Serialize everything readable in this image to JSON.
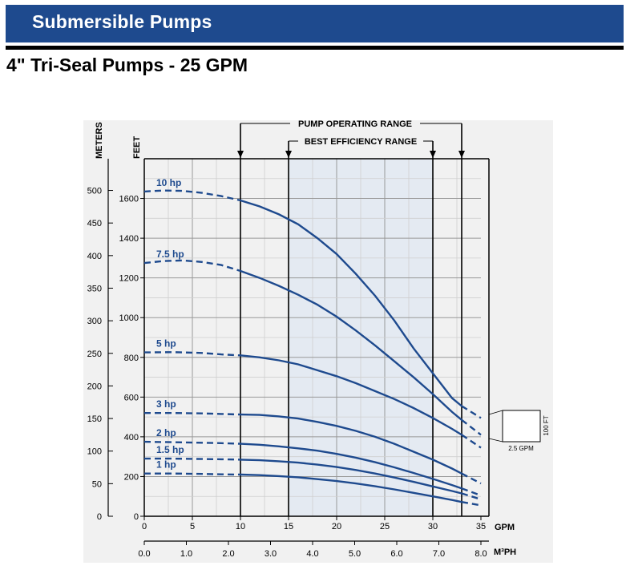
{
  "header": {
    "banner_title": "Submersible Pumps",
    "subtitle": "4\" Tri-Seal Pumps - 25 GPM"
  },
  "colors": {
    "banner": "#1e4a8e",
    "curve": "#1e4a8e",
    "bestEfficiency": "#e4eaf2"
  },
  "chart_data": {
    "type": "line",
    "title": "4\" Tri-Seal Pumps - 25 GPM",
    "xlabel": "GPM",
    "x2label": "M³PH",
    "ylabel_left": "METERS",
    "ylabel_right": "FEET",
    "xlim": [
      0,
      35
    ],
    "ylim_feet": [
      0,
      1800
    ],
    "x_ticks": [
      0,
      5,
      10,
      15,
      20,
      25,
      30,
      35
    ],
    "x_tick_labels": [
      "0",
      "5",
      "10",
      "15",
      "20",
      "25",
      "30",
      "35"
    ],
    "x2_ticks": [
      0.0,
      1.0,
      2.0,
      3.0,
      4.0,
      5.0,
      6.0,
      7.0,
      8.0
    ],
    "x2_tick_labels": [
      "0.0",
      "1.0",
      "2.0",
      "3.0",
      "4.0",
      "5.0",
      "6.0",
      "7.0",
      "8.0"
    ],
    "feet_ticks": [
      0,
      200,
      400,
      600,
      800,
      1000,
      1200,
      1400,
      1600
    ],
    "feet_tick_labels": [
      "0",
      "200",
      "400",
      "600",
      "800",
      "1000",
      "1200",
      "1400",
      "1600"
    ],
    "meter_ticks": [
      0,
      50,
      100,
      150,
      200,
      250,
      300,
      350,
      400,
      450,
      500
    ],
    "meter_tick_labels": [
      "0",
      "50",
      "100",
      "150",
      "200",
      "250",
      "300",
      "350",
      "400",
      "450",
      "500"
    ],
    "pump_operating_range": {
      "label": "PUMP OPERATING RANGE",
      "x": [
        10,
        33
      ]
    },
    "best_efficiency_range": {
      "label": "BEST EFFICIENCY RANGE",
      "x": [
        15,
        30
      ]
    },
    "scale_box": {
      "x_label": "2.5 GPM",
      "y_label": "100 FT"
    },
    "series": [
      {
        "name": "10 hp",
        "dashed": [
          [
            0,
            1635
          ],
          [
            2,
            1640
          ],
          [
            4,
            1638
          ],
          [
            6,
            1628
          ],
          [
            8,
            1612
          ],
          [
            10,
            1590
          ]
        ],
        "solid": [
          [
            10,
            1590
          ],
          [
            12,
            1560
          ],
          [
            14,
            1520
          ],
          [
            16,
            1470
          ],
          [
            18,
            1400
          ],
          [
            20,
            1320
          ],
          [
            22,
            1220
          ],
          [
            24,
            1110
          ],
          [
            26,
            985
          ],
          [
            28,
            845
          ],
          [
            30,
            720
          ],
          [
            32,
            595
          ],
          [
            33,
            555
          ]
        ],
        "tail": [
          [
            33,
            555
          ],
          [
            35,
            495
          ]
        ]
      },
      {
        "name": "7.5 hp",
        "dashed": [
          [
            0,
            1275
          ],
          [
            2,
            1285
          ],
          [
            4,
            1288
          ],
          [
            6,
            1280
          ],
          [
            8,
            1265
          ],
          [
            10,
            1235
          ]
        ],
        "solid": [
          [
            10,
            1235
          ],
          [
            12,
            1200
          ],
          [
            14,
            1160
          ],
          [
            16,
            1115
          ],
          [
            18,
            1065
          ],
          [
            20,
            1005
          ],
          [
            22,
            935
          ],
          [
            24,
            860
          ],
          [
            26,
            780
          ],
          [
            28,
            700
          ],
          [
            30,
            615
          ],
          [
            32,
            525
          ],
          [
            33,
            485
          ]
        ],
        "tail": [
          [
            33,
            485
          ],
          [
            35,
            410
          ]
        ]
      },
      {
        "name": "5 hp",
        "dashed": [
          [
            0,
            825
          ],
          [
            3,
            826
          ],
          [
            6,
            822
          ],
          [
            8,
            815
          ],
          [
            10,
            810
          ]
        ],
        "solid": [
          [
            10,
            810
          ],
          [
            12,
            800
          ],
          [
            14,
            785
          ],
          [
            16,
            765
          ],
          [
            18,
            735
          ],
          [
            20,
            705
          ],
          [
            22,
            670
          ],
          [
            24,
            630
          ],
          [
            26,
            590
          ],
          [
            28,
            545
          ],
          [
            30,
            495
          ],
          [
            32,
            440
          ],
          [
            33,
            410
          ]
        ],
        "tail": [
          [
            33,
            410
          ],
          [
            35,
            345
          ]
        ]
      },
      {
        "name": "3 hp",
        "dashed": [
          [
            0,
            520
          ],
          [
            3,
            520
          ],
          [
            6,
            518
          ],
          [
            8,
            515
          ],
          [
            10,
            512
          ]
        ],
        "solid": [
          [
            10,
            512
          ],
          [
            12,
            510
          ],
          [
            14,
            503
          ],
          [
            16,
            492
          ],
          [
            18,
            475
          ],
          [
            20,
            455
          ],
          [
            22,
            430
          ],
          [
            24,
            400
          ],
          [
            26,
            365
          ],
          [
            28,
            325
          ],
          [
            30,
            285
          ],
          [
            32,
            240
          ],
          [
            33,
            215
          ]
        ],
        "tail": [
          [
            33,
            215
          ],
          [
            35,
            165
          ]
        ]
      },
      {
        "name": "2 hp",
        "dashed": [
          [
            0,
            375
          ],
          [
            3,
            373
          ],
          [
            6,
            370
          ],
          [
            8,
            368
          ],
          [
            10,
            365
          ]
        ],
        "solid": [
          [
            10,
            365
          ],
          [
            12,
            360
          ],
          [
            14,
            352
          ],
          [
            16,
            342
          ],
          [
            18,
            330
          ],
          [
            20,
            314
          ],
          [
            22,
            295
          ],
          [
            24,
            272
          ],
          [
            26,
            246
          ],
          [
            28,
            218
          ],
          [
            30,
            188
          ],
          [
            32,
            157
          ],
          [
            33,
            140
          ]
        ],
        "tail": [
          [
            33,
            140
          ],
          [
            35,
            105
          ]
        ]
      },
      {
        "name": "1.5 hp",
        "dashed": [
          [
            0,
            290
          ],
          [
            3,
            290
          ],
          [
            6,
            288
          ],
          [
            8,
            287
          ],
          [
            10,
            285
          ]
        ],
        "solid": [
          [
            10,
            285
          ],
          [
            12,
            282
          ],
          [
            14,
            277
          ],
          [
            16,
            270
          ],
          [
            18,
            260
          ],
          [
            20,
            248
          ],
          [
            22,
            233
          ],
          [
            24,
            215
          ],
          [
            26,
            195
          ],
          [
            28,
            173
          ],
          [
            30,
            150
          ],
          [
            32,
            127
          ],
          [
            33,
            115
          ]
        ],
        "tail": [
          [
            33,
            115
          ],
          [
            35,
            85
          ]
        ]
      },
      {
        "name": "1 hp",
        "dashed": [
          [
            0,
            215
          ],
          [
            3,
            215
          ],
          [
            6,
            213
          ],
          [
            8,
            211
          ],
          [
            10,
            210
          ]
        ],
        "solid": [
          [
            10,
            210
          ],
          [
            12,
            207
          ],
          [
            14,
            202
          ],
          [
            16,
            196
          ],
          [
            18,
            187
          ],
          [
            20,
            177
          ],
          [
            22,
            165
          ],
          [
            24,
            151
          ],
          [
            26,
            135
          ],
          [
            28,
            118
          ],
          [
            30,
            100
          ],
          [
            32,
            82
          ],
          [
            33,
            72
          ]
        ],
        "tail": [
          [
            33,
            72
          ],
          [
            35,
            55
          ]
        ]
      }
    ]
  }
}
